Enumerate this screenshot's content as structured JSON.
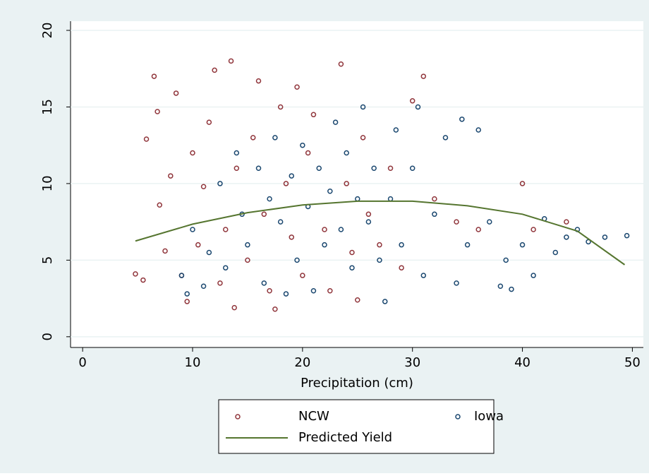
{
  "chart_data": {
    "type": "scatter",
    "xlabel": "Precipitation (cm)",
    "xlim": [
      -1.1,
      51
    ],
    "ylim": [
      -0.7,
      20.6
    ],
    "xticks": [
      0,
      10,
      20,
      30,
      40,
      50
    ],
    "yticks": [
      0,
      5,
      10,
      15,
      20
    ],
    "grid": true,
    "series": [
      {
        "name": "NCW",
        "color": "#90353b",
        "kind": "scatter",
        "x": [
          4.8,
          5.5,
          5.8,
          6.5,
          6.8,
          7,
          7.5,
          8,
          8.5,
          9,
          9.5,
          10,
          10.5,
          11,
          11.5,
          12,
          12.5,
          13,
          13.5,
          13.8,
          14,
          15,
          15.5,
          16,
          16.5,
          17,
          17.5,
          18,
          18.5,
          19,
          19.5,
          20,
          20.5,
          21,
          22,
          22.5,
          23.5,
          24,
          24.5,
          25,
          25.5,
          26,
          27,
          28,
          29,
          30,
          31,
          32,
          34,
          36,
          40,
          41,
          44
        ],
        "values": [
          4.1,
          3.7,
          12.9,
          17,
          14.7,
          8.6,
          5.6,
          10.5,
          15.9,
          4,
          2.3,
          12,
          6,
          9.8,
          14,
          17.4,
          3.5,
          7,
          18,
          1.9,
          11,
          5,
          13,
          16.7,
          8,
          3,
          1.8,
          15,
          10,
          6.5,
          16.3,
          4,
          12,
          14.5,
          7,
          3,
          17.8,
          10,
          5.5,
          2.4,
          13,
          8,
          6,
          11,
          4.5,
          15.4,
          17,
          9,
          7.5,
          7,
          10,
          7,
          7.5
        ]
      },
      {
        "name": "Iowa",
        "color": "#1a476f",
        "kind": "scatter",
        "x": [
          9,
          9.5,
          10,
          11,
          11.5,
          12.5,
          13,
          14,
          14.5,
          15,
          16,
          16.5,
          17,
          17.5,
          18,
          18.5,
          19,
          19.5,
          20,
          20.5,
          21,
          21.5,
          22,
          22.5,
          23,
          23.5,
          24,
          24.5,
          25,
          25.5,
          26,
          26.5,
          27,
          27.5,
          28,
          28.5,
          29,
          30,
          30.5,
          31,
          32,
          33,
          34,
          34.5,
          35,
          36,
          37,
          38,
          38.5,
          39,
          40,
          41,
          42,
          43,
          44,
          45,
          46,
          47.5,
          49.5
        ],
        "values": [
          4,
          2.8,
          7,
          3.3,
          5.5,
          10,
          4.5,
          12,
          8,
          6,
          11,
          3.5,
          9,
          13,
          7.5,
          2.8,
          10.5,
          5,
          12.5,
          8.5,
          3,
          11,
          6,
          9.5,
          14,
          7,
          12,
          4.5,
          9,
          15,
          7.5,
          11,
          5,
          2.3,
          9,
          13.5,
          6,
          11,
          15,
          4,
          8,
          13,
          3.5,
          14.2,
          6,
          13.5,
          7.5,
          3.3,
          5,
          3.1,
          6,
          4,
          7.7,
          5.5,
          6.5,
          7,
          6.2,
          6.5,
          6.6
        ]
      },
      {
        "name": "Predicted Yield",
        "color": "#55752f",
        "kind": "line",
        "x": [
          4.8,
          10,
          15,
          20,
          25,
          30,
          35,
          40,
          45,
          49.3
        ],
        "values": [
          6.25,
          7.35,
          8.1,
          8.6,
          8.85,
          8.85,
          8.55,
          8.0,
          6.9,
          4.7
        ]
      }
    ]
  }
}
